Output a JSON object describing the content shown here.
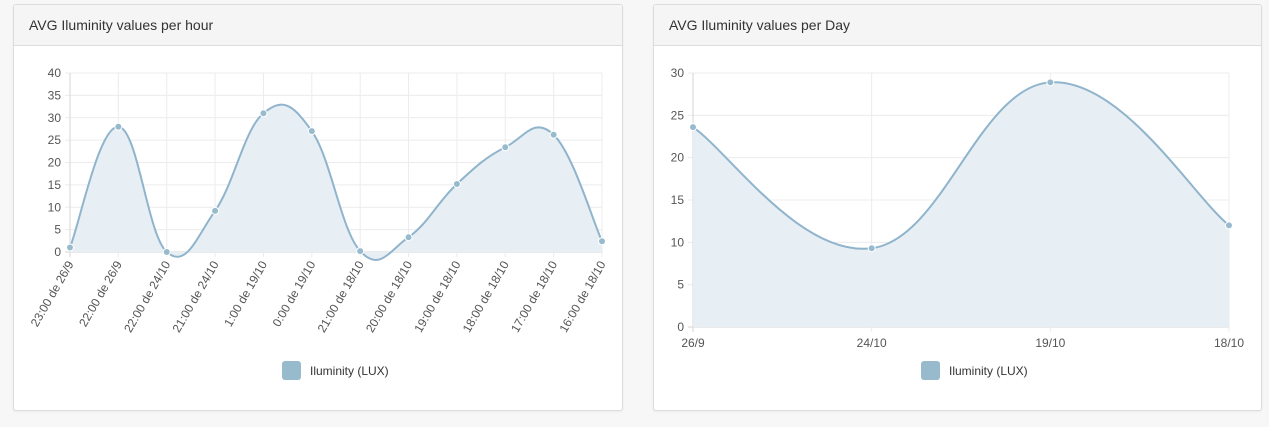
{
  "panels": {
    "hour": {
      "title": "AVG Iluminity values per hour"
    },
    "day": {
      "title": "AVG Iluminity values per Day"
    }
  },
  "colors": {
    "line": "#8fb4cc",
    "fill": "#e8eff4",
    "point": "#97bbcd",
    "grid": "#ececec",
    "axis": "#d5d5d5"
  },
  "chart_data": [
    {
      "type": "line",
      "title": "AVG Iluminity values per hour",
      "categories": [
        "23:00 de 26/9",
        "22:00 de 26/9",
        "22:00 de 24/10",
        "21:00 de 24/10",
        "1:00 de 19/10",
        "0:00 de 19/10",
        "21:00 de 18/10",
        "20:00 de 18/10",
        "19:00 de 18/10",
        "18:00 de 18/10",
        "17:00 de 18/10",
        "16:00 de 18/10"
      ],
      "series": [
        {
          "name": "Iluminity (LUX)",
          "values": [
            1,
            28,
            0,
            9.2,
            31,
            27,
            0.2,
            3.3,
            15.2,
            23.4,
            26.2,
            2.4
          ]
        }
      ],
      "yticks": [
        "0",
        "5",
        "10",
        "15",
        "20",
        "25",
        "30",
        "35",
        "40"
      ],
      "ylim": [
        0,
        40
      ],
      "grid": true,
      "fill": true,
      "legend": "bottom"
    },
    {
      "type": "line",
      "title": "AVG Iluminity values per Day",
      "categories": [
        "26/9",
        "24/10",
        "19/10",
        "18/10"
      ],
      "series": [
        {
          "name": "Iluminity (LUX)",
          "values": [
            23.6,
            9.3,
            28.9,
            12
          ]
        }
      ],
      "yticks": [
        "0",
        "5",
        "10",
        "15",
        "20",
        "25",
        "30"
      ],
      "ylim": [
        0,
        30
      ],
      "grid": true,
      "fill": true,
      "legend": "bottom"
    }
  ]
}
